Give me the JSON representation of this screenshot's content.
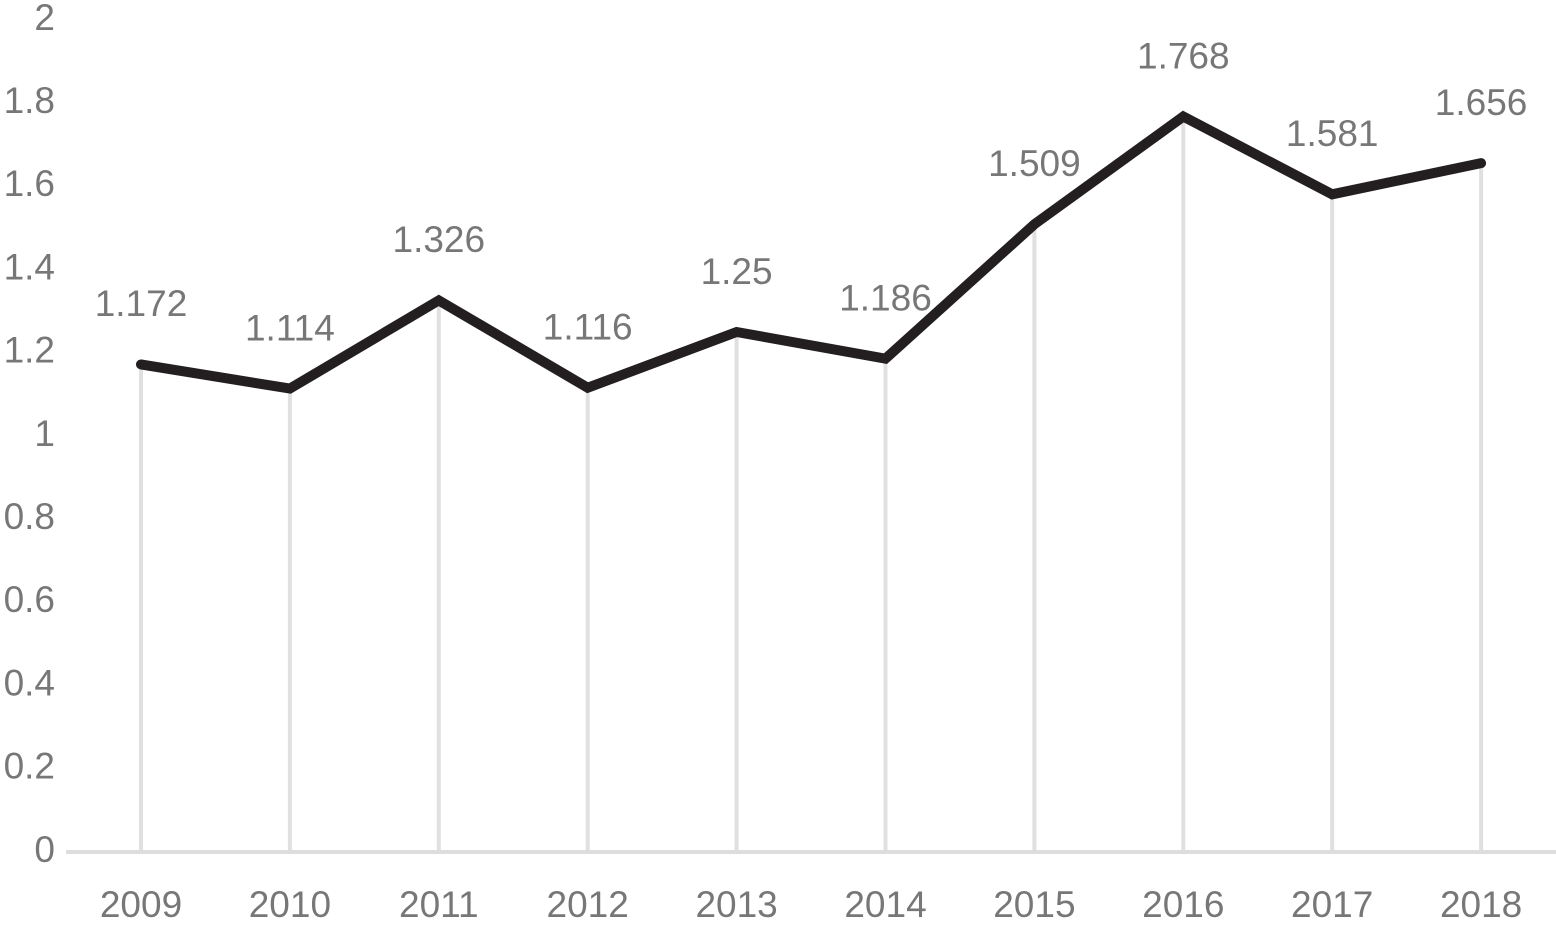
{
  "chart_data": {
    "type": "line",
    "categories": [
      "2009",
      "2010",
      "2011",
      "2012",
      "2013",
      "2014",
      "2015",
      "2016",
      "2017",
      "2018"
    ],
    "series": [
      {
        "color": "#231f20",
        "values": [
          1.172,
          1.114,
          1.326,
          1.116,
          1.25,
          1.186,
          1.509,
          1.768,
          1.581,
          1.656
        ]
      }
    ],
    "ylim": [
      0,
      2
    ],
    "yticks": [
      0,
      0.2,
      0.4,
      0.6,
      0.8,
      1,
      1.2,
      1.4,
      1.6,
      1.8,
      2
    ],
    "grid": false
  }
}
